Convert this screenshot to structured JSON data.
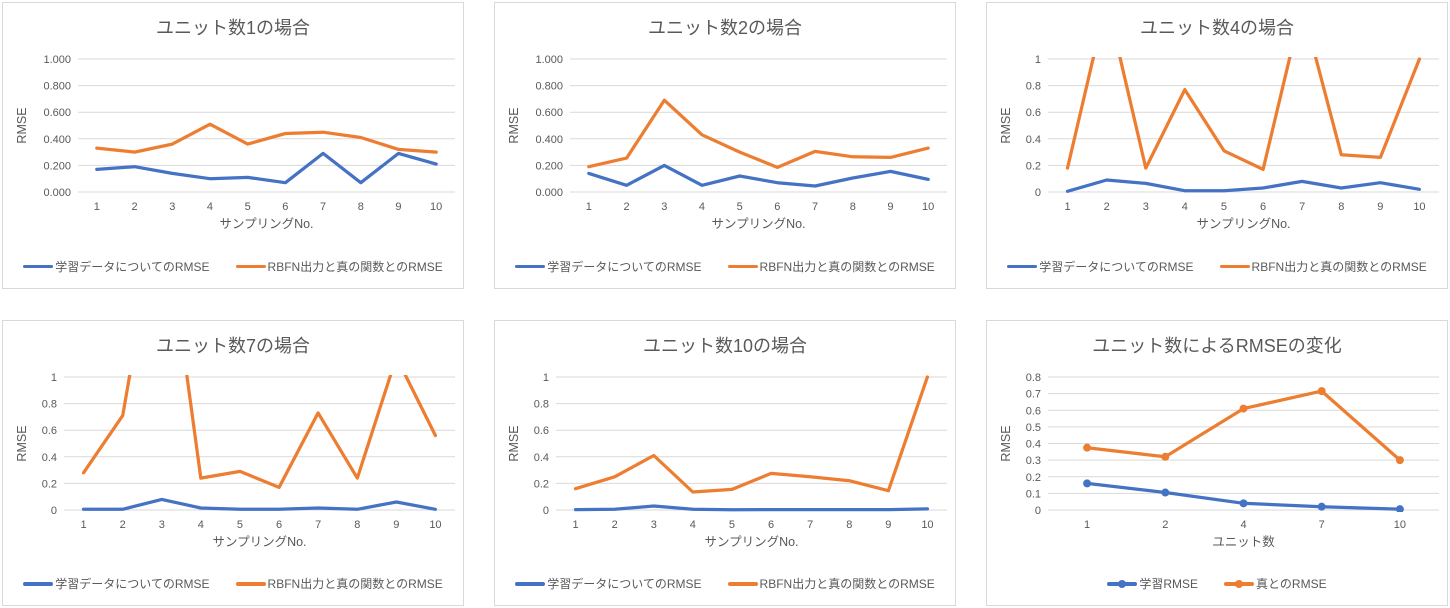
{
  "page": {
    "background": "#ffffff",
    "panel_border": "#D9D9D9"
  },
  "colors": {
    "series_blue": "#4472C4",
    "series_orange": "#ED7D31",
    "gridline": "#D9D9D9",
    "text": "#595959"
  },
  "chart_data": [
    {
      "type": "line",
      "title": "ユニット数1の場合",
      "xlabel": "サンプリングNo.",
      "ylabel": "RMSE",
      "categories": [
        "1",
        "2",
        "3",
        "4",
        "5",
        "6",
        "7",
        "8",
        "9",
        "10"
      ],
      "ylim": [
        0,
        1
      ],
      "ytick_values": [
        0,
        0.2,
        0.4,
        0.6,
        0.8,
        1
      ],
      "ytick_labels": [
        "0.000",
        "0.200",
        "0.400",
        "0.600",
        "0.800",
        "1.000"
      ],
      "grid": true,
      "markers": false,
      "legend_position": "bottom",
      "series": [
        {
          "name": "学習データについてのRMSE",
          "color": "#4472C4",
          "values": [
            0.17,
            0.19,
            0.14,
            0.1,
            0.11,
            0.07,
            0.29,
            0.07,
            0.29,
            0.21
          ]
        },
        {
          "name": "RBFN出力と真の関数とのRMSE",
          "color": "#ED7D31",
          "values": [
            0.33,
            0.3,
            0.36,
            0.51,
            0.36,
            0.44,
            0.45,
            0.41,
            0.32,
            0.3
          ]
        }
      ]
    },
    {
      "type": "line",
      "title": "ユニット数2の場合",
      "xlabel": "サンプリングNo.",
      "ylabel": "RMSE",
      "categories": [
        "1",
        "2",
        "3",
        "4",
        "5",
        "6",
        "7",
        "8",
        "9",
        "10"
      ],
      "ylim": [
        0,
        1
      ],
      "ytick_values": [
        0,
        0.2,
        0.4,
        0.6,
        0.8,
        1
      ],
      "ytick_labels": [
        "0.000",
        "0.200",
        "0.400",
        "0.600",
        "0.800",
        "1.000"
      ],
      "grid": true,
      "markers": false,
      "legend_position": "bottom",
      "series": [
        {
          "name": "学習データについてのRMSE",
          "color": "#4472C4",
          "values": [
            0.14,
            0.05,
            0.2,
            0.05,
            0.12,
            0.07,
            0.045,
            0.105,
            0.155,
            0.095
          ]
        },
        {
          "name": "RBFN出力と真の関数とのRMSE",
          "color": "#ED7D31",
          "values": [
            0.19,
            0.255,
            0.69,
            0.43,
            0.3,
            0.185,
            0.305,
            0.265,
            0.26,
            0.33
          ]
        }
      ]
    },
    {
      "type": "line",
      "title": "ユニット数4の場合",
      "xlabel": "サンプリングNo.",
      "ylabel": "RMSE",
      "categories": [
        "1",
        "2",
        "3",
        "4",
        "5",
        "6",
        "7",
        "8",
        "9",
        "10"
      ],
      "ylim": [
        0,
        1
      ],
      "ytick_values": [
        0,
        0.2,
        0.4,
        0.6,
        0.8,
        1
      ],
      "ytick_labels": [
        "0",
        "0.2",
        "0.4",
        "0.6",
        "0.8",
        "1"
      ],
      "grid": true,
      "markers": false,
      "legend_position": "bottom",
      "clip_note": "orange series exceeds axis max and is clipped at 1",
      "series": [
        {
          "name": "学習データについてのRMSE",
          "color": "#4472C4",
          "values": [
            0.005,
            0.09,
            0.065,
            0.01,
            0.01,
            0.03,
            0.08,
            0.03,
            0.07,
            0.02
          ]
        },
        {
          "name": "RBFN出力と真の関数とのRMSE",
          "color": "#ED7D31",
          "values": [
            0.18,
            1.44,
            0.18,
            0.77,
            0.31,
            0.17,
            1.4,
            0.28,
            0.26,
            1.0
          ]
        }
      ]
    },
    {
      "type": "line",
      "title": "ユニット数7の場合",
      "xlabel": "サンプリングNo.",
      "ylabel": "RMSE",
      "categories": [
        "1",
        "2",
        "3",
        "4",
        "5",
        "6",
        "7",
        "8",
        "9",
        "10"
      ],
      "ylim": [
        0,
        1
      ],
      "ytick_values": [
        0,
        0.2,
        0.4,
        0.6,
        0.8,
        1
      ],
      "ytick_labels": [
        "0",
        "0.2",
        "0.4",
        "0.6",
        "0.8",
        "1"
      ],
      "grid": true,
      "markers": false,
      "legend_position": "bottom",
      "clip_note": "orange series exceeds axis max and is clipped at 1",
      "series": [
        {
          "name": "学習データについてのRMSE",
          "color": "#4472C4",
          "values": [
            0.005,
            0.005,
            0.08,
            0.015,
            0.005,
            0.005,
            0.015,
            0.005,
            0.06,
            0.005
          ]
        },
        {
          "name": "RBFN出力と真の関数とのRMSE",
          "color": "#ED7D31",
          "values": [
            0.28,
            0.71,
            2.4,
            0.24,
            0.29,
            0.17,
            0.73,
            0.24,
            1.15,
            0.56
          ]
        }
      ]
    },
    {
      "type": "line",
      "title": "ユニット数10の場合",
      "xlabel": "サンプリングNo.",
      "ylabel": "RMSE",
      "categories": [
        "1",
        "2",
        "3",
        "4",
        "5",
        "6",
        "7",
        "8",
        "9",
        "10"
      ],
      "ylim": [
        0,
        1
      ],
      "ytick_values": [
        0,
        0.2,
        0.4,
        0.6,
        0.8,
        1
      ],
      "ytick_labels": [
        "0",
        "0.2",
        "0.4",
        "0.6",
        "0.8",
        "1"
      ],
      "grid": true,
      "markers": false,
      "legend_position": "bottom",
      "series": [
        {
          "name": "学習データについてのRMSE",
          "color": "#4472C4",
          "values": [
            0.003,
            0.005,
            0.03,
            0.005,
            0.002,
            0.003,
            0.003,
            0.003,
            0.003,
            0.008
          ]
        },
        {
          "name": "RBFN出力と真の関数とのRMSE",
          "color": "#ED7D31",
          "values": [
            0.16,
            0.25,
            0.41,
            0.135,
            0.155,
            0.275,
            0.25,
            0.22,
            0.145,
            1.0
          ]
        }
      ]
    },
    {
      "type": "line",
      "title": "ユニット数によるRMSEの変化",
      "xlabel": "ユニット数",
      "ylabel": "RMSE",
      "categories": [
        "1",
        "2",
        "4",
        "7",
        "10"
      ],
      "ylim": [
        0,
        0.8
      ],
      "ytick_values": [
        0,
        0.1,
        0.2,
        0.3,
        0.4,
        0.5,
        0.6,
        0.7,
        0.8
      ],
      "ytick_labels": [
        "0",
        "0.1",
        "0.2",
        "0.3",
        "0.4",
        "0.5",
        "0.6",
        "0.7",
        "0.8"
      ],
      "grid": true,
      "markers": true,
      "legend_position": "bottom",
      "series": [
        {
          "name": "学習RMSE",
          "color": "#4472C4",
          "values": [
            0.16,
            0.105,
            0.04,
            0.02,
            0.005
          ]
        },
        {
          "name": "真とのRMSE",
          "color": "#ED7D31",
          "values": [
            0.375,
            0.32,
            0.61,
            0.715,
            0.3
          ]
        }
      ]
    }
  ]
}
